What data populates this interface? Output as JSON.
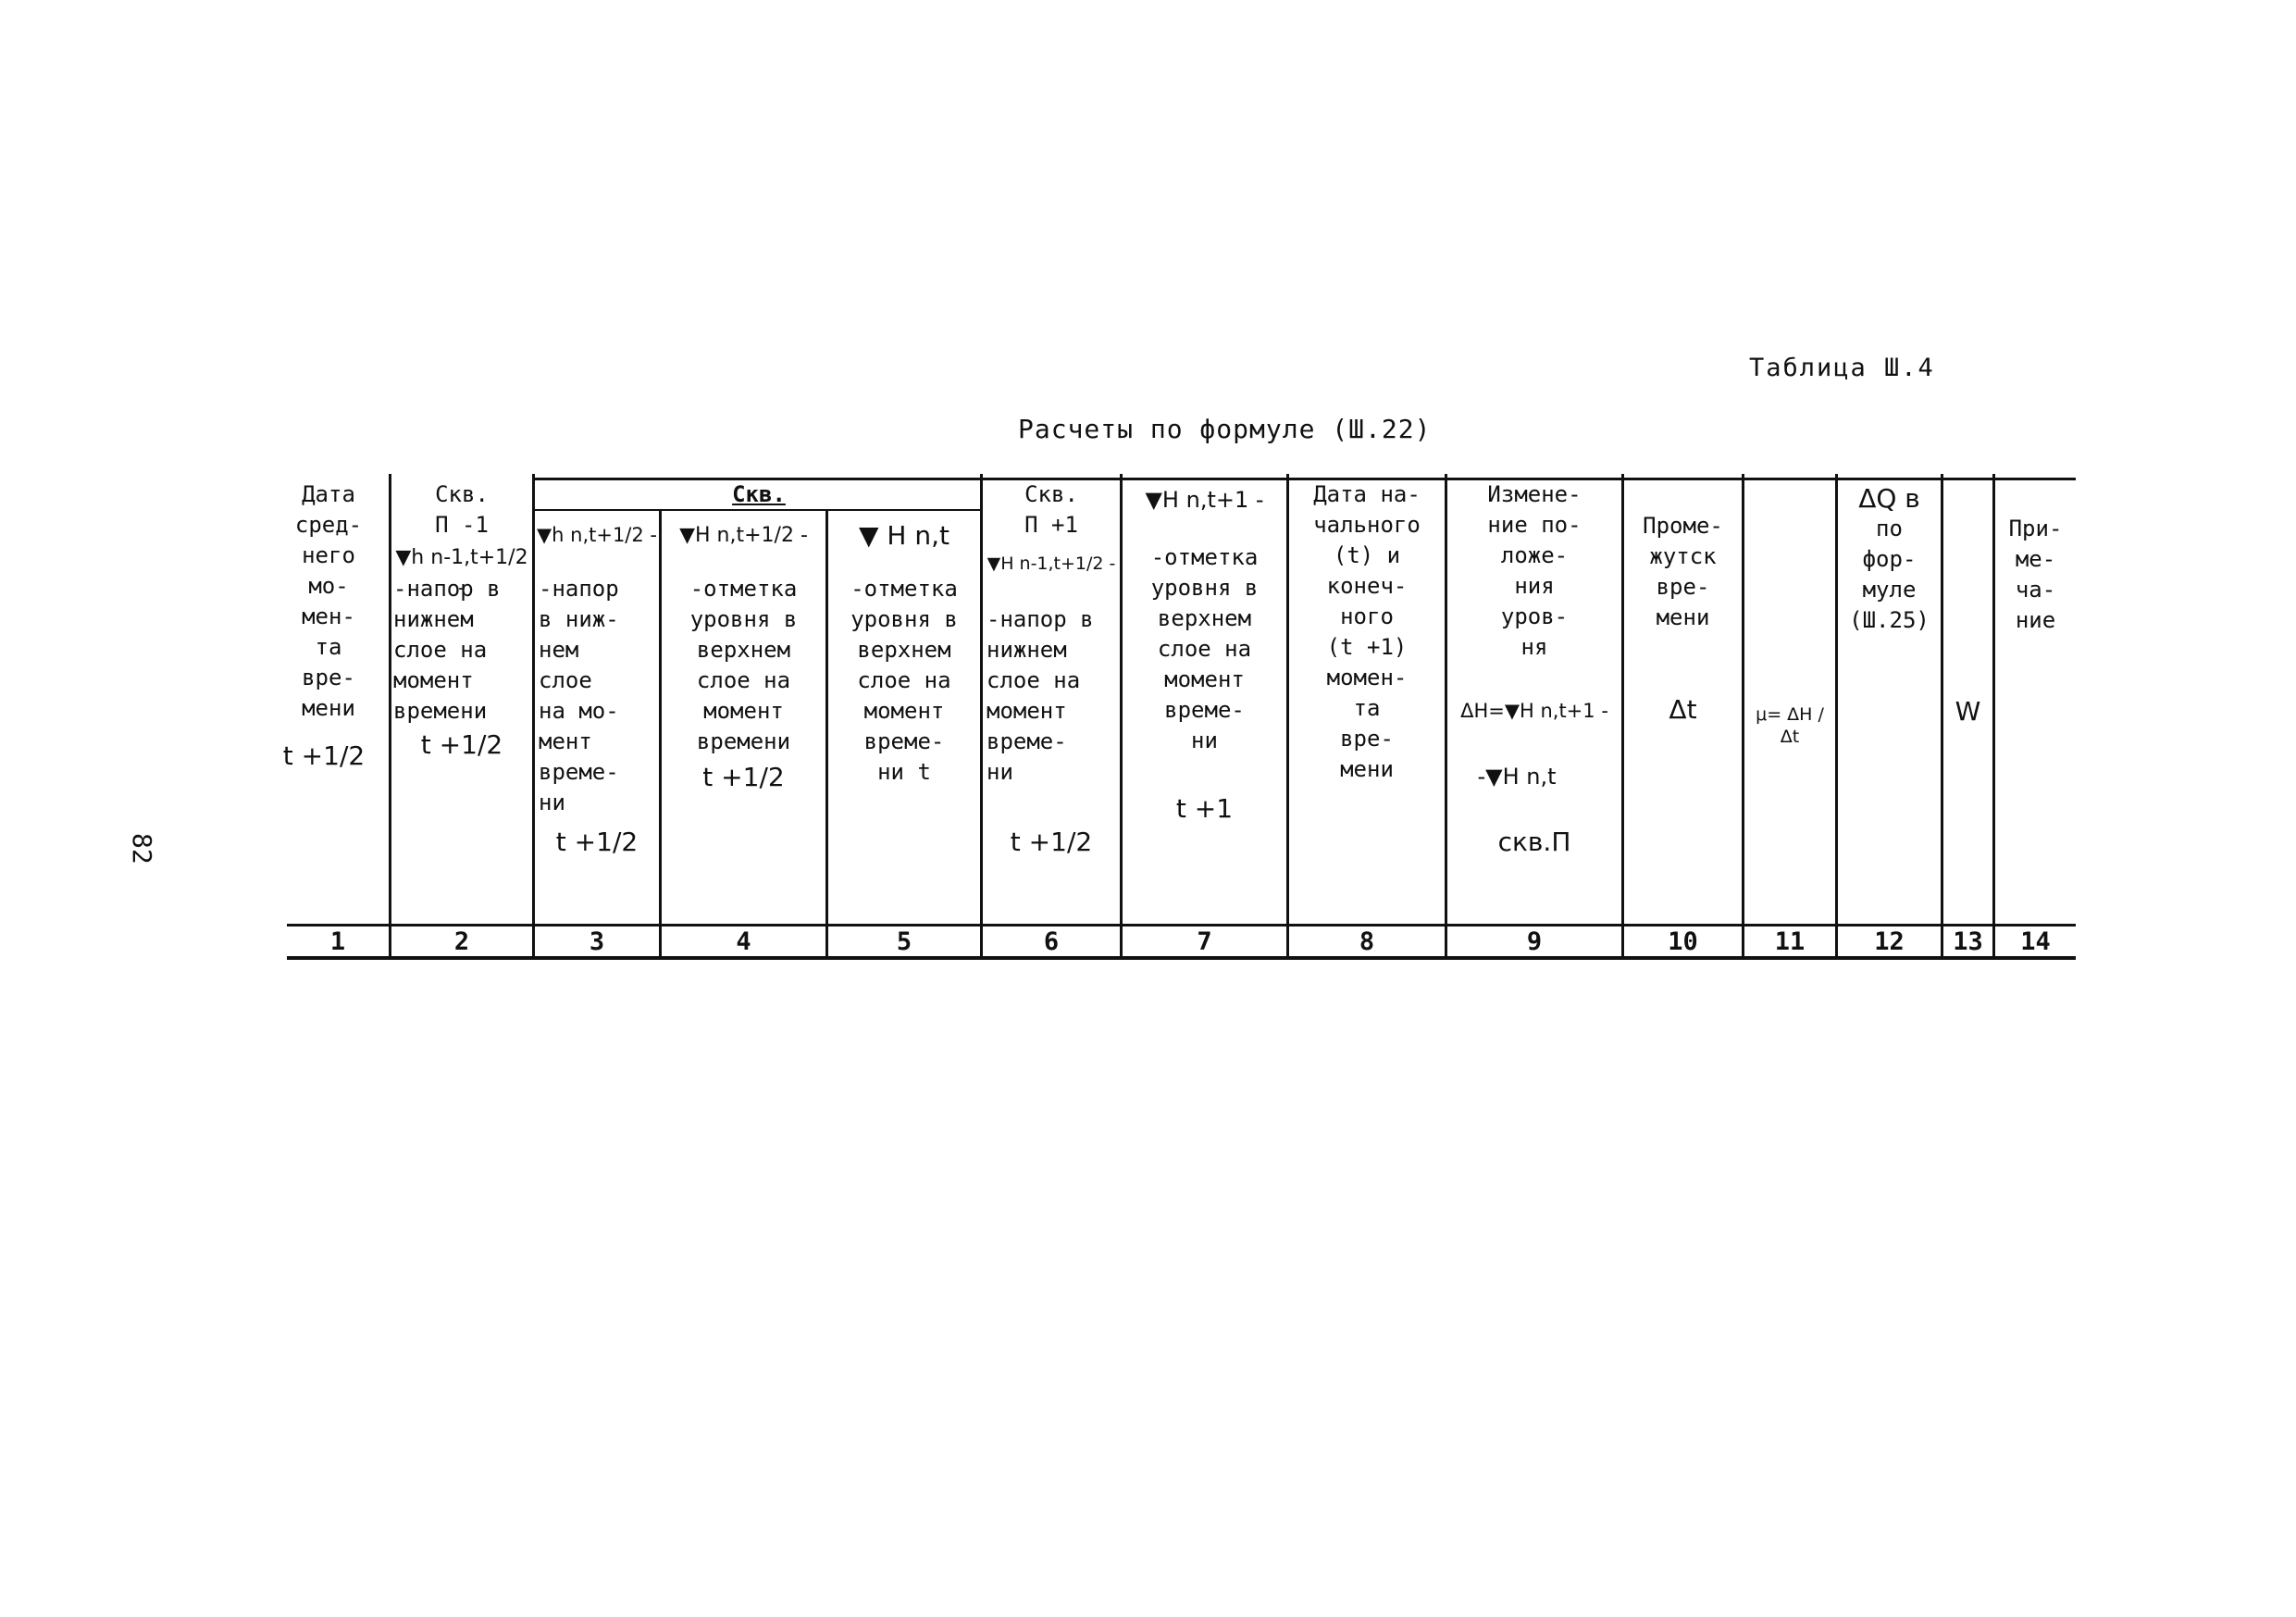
{
  "page_number": "82",
  "table_label": "Таблица Ш.4",
  "table_caption": "Расчеты по формуле (Ш.22)",
  "group_header": "Скв.",
  "columns": [
    {
      "text": "Дата\nсред-\nнего\nмо-\nмен-\nта\nвре-\nмени",
      "symbol": "t +1/2",
      "number": "1"
    },
    {
      "text": "Скв.\nП -1",
      "symbol": "▼h n-1,t+1/2 -",
      "text2": "-напор в\nнижнем\nслое на\nмомент\nвремени",
      "tail": "t +1/2",
      "number": "2"
    },
    {
      "symbol": "▼h n,t+1/2 -",
      "text": "-напор\nв ниж-\nнем\nслое\nна мо-\nмент\nвреме-\nни",
      "tail": "t +1/2",
      "number": "3"
    },
    {
      "symbol": "▼H n,t+1/2 -",
      "text": "-отметка\nуровня в\nверхнем\nслое на\nмомент\nвремени",
      "tail": "t +1/2",
      "number": "4"
    },
    {
      "symbol": "▼ H n,t",
      "text": "-отметка\nуровня в\nверхнем\nслое на\nмомент\nвреме-\nни t",
      "number": "5"
    },
    {
      "text": "Скв.\nП +1",
      "symbol": "▼H n-1,t+1/2 -",
      "text2": "-напор в\nнижнем\nслое на\nмомент\nвреме-\nни",
      "tail": "t +1/2",
      "number": "6"
    },
    {
      "symbol": "▼H n,t+1 -",
      "text": "-отметка\nуровня в\nверхнем\nслое на\nмомент\nвреме-\nни",
      "tail": "t +1",
      "number": "7"
    },
    {
      "text": "Дата на-\nчального\n(t) и\nконеч-\nного\n(t +1)\nмомен-\nта\nвре-\nмени",
      "number": "8"
    },
    {
      "text": "Измене-\nние по-\nложе-\nния\nуров-\nня",
      "symbol": "ΔH=▼H n,t+1 -",
      "text2": "-▼H n,t",
      "tail": "скв.П",
      "number": "9"
    },
    {
      "text": "Проме-\nжутск\nвре-\nмени",
      "symbol": "Δt",
      "number": "10"
    },
    {
      "symbol": "μ= ΔH / Δt",
      "number": "11"
    },
    {
      "symbol": "ΔQ в",
      "text": "по\nфор-\nмуле\n(Ш.25)",
      "number": "12"
    },
    {
      "symbol": "W",
      "number": "13"
    },
    {
      "text": "При-\nме-\nча-\nние",
      "number": "14"
    }
  ]
}
